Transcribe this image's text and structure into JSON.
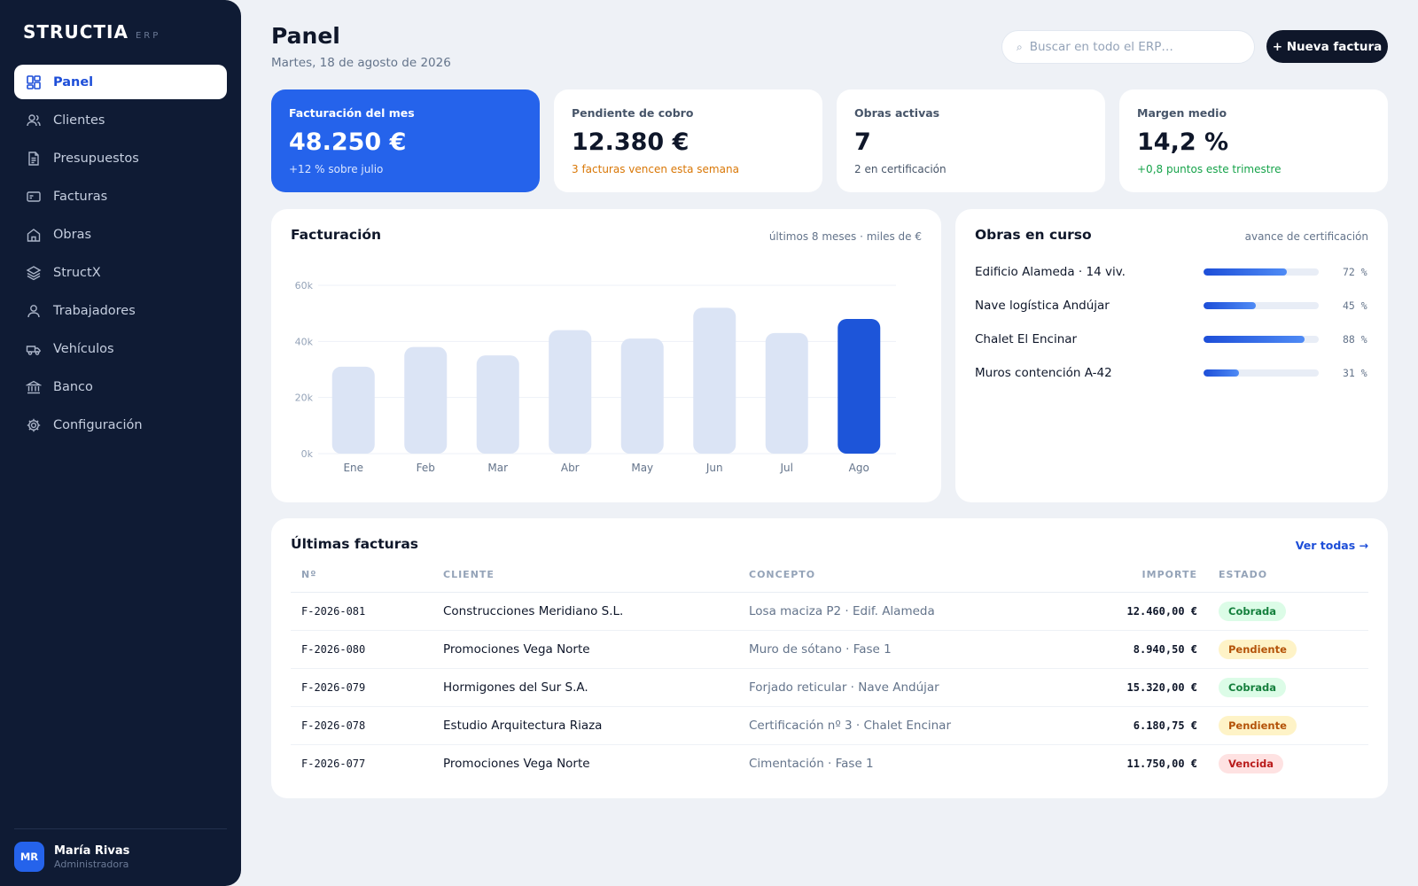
{
  "brand": {
    "name": "STRUCTIA",
    "tag": "ERP"
  },
  "sidebar": {
    "items": [
      {
        "label": "Panel",
        "icon": "dashboard-icon",
        "active": true
      },
      {
        "label": "Clientes",
        "icon": "users-icon"
      },
      {
        "label": "Presupuestos",
        "icon": "document-icon"
      },
      {
        "label": "Facturas",
        "icon": "invoice-icon"
      },
      {
        "label": "Obras",
        "icon": "building-icon"
      },
      {
        "label": "StructX",
        "icon": "layers-icon"
      },
      {
        "label": "Trabajadores",
        "icon": "user-icon"
      },
      {
        "label": "Vehículos",
        "icon": "truck-icon"
      },
      {
        "label": "Banco",
        "icon": "bank-icon"
      },
      {
        "label": "Configuración",
        "icon": "gear-icon"
      }
    ]
  },
  "user": {
    "initials": "MR",
    "name": "María Rivas",
    "role": "Administradora"
  },
  "header": {
    "title": "Panel",
    "date": "Martes, 18 de agosto de 2026",
    "search_icon": "⌕",
    "search_placeholder": "Buscar en todo el ERP…",
    "new_button": "+ Nueva factura"
  },
  "kpis": [
    {
      "label": "Facturación del mes",
      "value": "48.250 €",
      "sub": "+12 % sobre julio"
    },
    {
      "label": "Pendiente de cobro",
      "value": "12.380 €",
      "sub": "3 facturas vencen esta semana"
    },
    {
      "label": "Obras activas",
      "value": "7",
      "sub": "2 en certificación"
    },
    {
      "label": "Margen medio",
      "value": "14,2 %",
      "sub": "+0,8 puntos este trimestre"
    }
  ],
  "billing": {
    "title": "Facturación",
    "note": "últimos 8 meses · miles de €"
  },
  "chart_data": {
    "type": "bar",
    "categories": [
      "Ene",
      "Feb",
      "Mar",
      "Abr",
      "May",
      "Jun",
      "Jul",
      "Ago"
    ],
    "values": [
      31,
      38,
      35,
      44,
      41,
      52,
      43,
      48
    ],
    "highlight_index": 7,
    "ylim": [
      0,
      60
    ],
    "yticks": [
      0,
      20,
      40,
      60
    ],
    "ytick_labels": [
      "0k",
      "20k",
      "40k",
      "60k"
    ],
    "grid": true,
    "colors": {
      "bar": "#dbe4f5",
      "highlight": "#1d55d9"
    }
  },
  "obras": {
    "title": "Obras en curso",
    "note": "avance de certificación",
    "items": [
      {
        "name": "Edificio Alameda · 14 viv.",
        "progress": 72,
        "pct_label": "72 %"
      },
      {
        "name": "Nave logística Andújar",
        "progress": 45,
        "pct_label": "45 %"
      },
      {
        "name": "Chalet El Encinar",
        "progress": 88,
        "pct_label": "88 %"
      },
      {
        "name": "Muros contención A-42",
        "progress": 31,
        "pct_label": "31 %"
      }
    ]
  },
  "invoices": {
    "title": "Últimas facturas",
    "view_all": "Ver todas →",
    "columns": [
      "Nº",
      "CLIENTE",
      "CONCEPTO",
      "IMPORTE",
      "ESTADO"
    ],
    "rows": [
      {
        "num": "F-2026-081",
        "client": "Construcciones Meridiano S.L.",
        "concept": "Losa maciza P2 · Edif. Alameda",
        "amount": "12.460,00 €",
        "status": "Cobrada",
        "status_kind": "cobrada"
      },
      {
        "num": "F-2026-080",
        "client": "Promociones Vega Norte",
        "concept": "Muro de sótano · Fase 1",
        "amount": "8.940,50 €",
        "status": "Pendiente",
        "status_kind": "pendiente"
      },
      {
        "num": "F-2026-079",
        "client": "Hormigones del Sur S.A.",
        "concept": "Forjado reticular · Nave Andújar",
        "amount": "15.320,00 €",
        "status": "Cobrada",
        "status_kind": "cobrada"
      },
      {
        "num": "F-2026-078",
        "client": "Estudio Arquitectura Riaza",
        "concept": "Certificación nº 3 · Chalet Encinar",
        "amount": "6.180,75 €",
        "status": "Pendiente",
        "status_kind": "pendiente"
      },
      {
        "num": "F-2026-077",
        "client": "Promociones Vega Norte",
        "concept": "Cimentación · Fase 1",
        "amount": "11.750,00 €",
        "status": "Vencida",
        "status_kind": "vencida"
      }
    ]
  }
}
